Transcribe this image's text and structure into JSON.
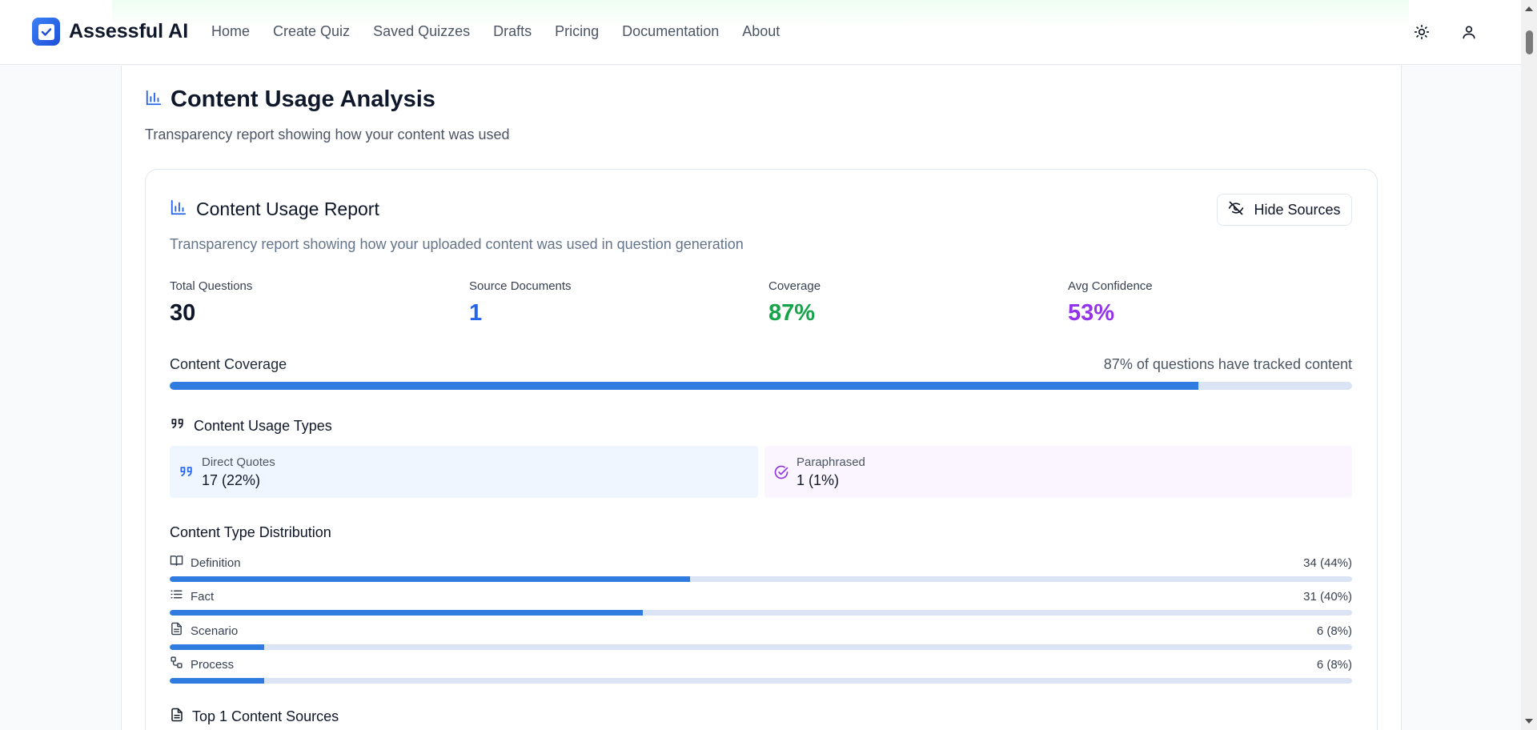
{
  "nav": {
    "brand": "Assessful AI",
    "links": [
      "Home",
      "Create Quiz",
      "Saved Quizzes",
      "Drafts",
      "Pricing",
      "Documentation",
      "About"
    ]
  },
  "page": {
    "title": "Content Usage Analysis",
    "subtitle": "Transparency report showing how your content was used"
  },
  "report": {
    "title": "Content Usage Report",
    "hide_sources_label": "Hide Sources",
    "subtitle": "Transparency report showing how your uploaded content was used in question generation",
    "stats": [
      {
        "label": "Total Questions",
        "value": "30",
        "color": "#0f172a"
      },
      {
        "label": "Source Documents",
        "value": "1",
        "color": "#2563eb"
      },
      {
        "label": "Coverage",
        "value": "87%",
        "color": "#16a34a"
      },
      {
        "label": "Avg Confidence",
        "value": "53%",
        "color": "#9333ea"
      }
    ],
    "coverage": {
      "label": "Content Coverage",
      "note": "87% of questions have tracked content",
      "percent": 87
    },
    "usage_types": {
      "title": "Content Usage Types",
      "items": [
        {
          "label": "Direct Quotes",
          "value": "17 (22%)",
          "icon": "quote-icon"
        },
        {
          "label": "Paraphrased",
          "value": "1 (1%)",
          "icon": "check-circle-icon"
        }
      ]
    },
    "distribution": {
      "title": "Content Type Distribution",
      "items": [
        {
          "name": "Definition",
          "count": "34 (44%)",
          "percent": 44,
          "icon": "book-icon"
        },
        {
          "name": "Fact",
          "count": "31 (40%)",
          "percent": 40,
          "icon": "list-icon"
        },
        {
          "name": "Scenario",
          "count": "6 (8%)",
          "percent": 8,
          "icon": "file-icon"
        },
        {
          "name": "Process",
          "count": "6 (8%)",
          "percent": 8,
          "icon": "workflow-icon"
        }
      ]
    },
    "top_sources": {
      "title": "Top 1 Content Sources"
    }
  }
}
